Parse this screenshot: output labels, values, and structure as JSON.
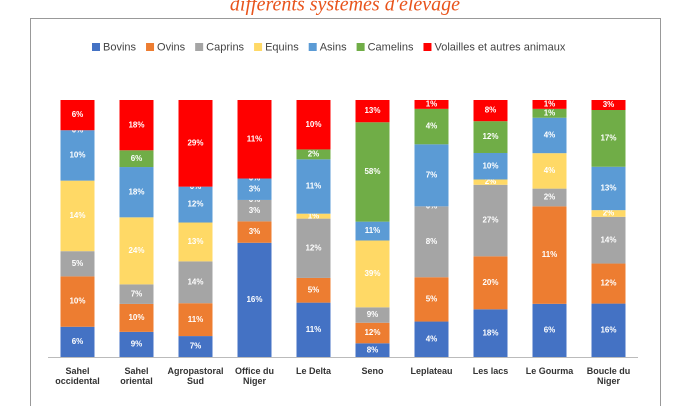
{
  "chart_data": {
    "type": "stacked100",
    "title": "différents systèmes d'élevage",
    "categories": [
      "Sahel occidental",
      "Sahel oriental",
      "Agropastoral Sud",
      "Office du Niger",
      "Le Delta",
      "Seno",
      "Leplateau",
      "Les lacs",
      "Le Gourma",
      "Boucle du Niger"
    ],
    "legend": "top",
    "series": [
      {
        "name": "Bovins",
        "color": "#4472c4",
        "values": [
          6,
          9,
          7,
          16,
          11,
          8,
          4,
          18,
          6,
          16
        ],
        "value_labels": [
          "6%",
          "9%",
          "7%",
          "16%",
          "11%",
          "8%",
          "4%",
          "18%",
          "6%",
          "16%"
        ]
      },
      {
        "name": "Ovins",
        "color": "#ed7d31",
        "values": [
          10,
          10,
          11,
          3,
          5,
          12,
          5,
          20,
          11,
          12
        ],
        "value_labels": [
          "10%",
          "10%",
          "11%",
          "3%",
          "5%",
          "12%",
          "5%",
          "20%",
          "11%",
          "12%"
        ]
      },
      {
        "name": "Caprins",
        "color": "#a5a5a5",
        "values": [
          5,
          7,
          14,
          3,
          12,
          9,
          8,
          27,
          2,
          14
        ],
        "value_labels": [
          "5%",
          "7%",
          "14%",
          "3%",
          "12%",
          "9%",
          "8%",
          "27%",
          "2%",
          "14%"
        ]
      },
      {
        "name": "Equins",
        "color": "#ffd966",
        "values": [
          14,
          24,
          13,
          0,
          1,
          39,
          0,
          2,
          4,
          2
        ],
        "value_labels": [
          "14%",
          "24%",
          "13%",
          "0%",
          "1%",
          "39%",
          "0%",
          "2%",
          "4%",
          "2%"
        ]
      },
      {
        "name": "Asins",
        "color": "#5b9bd5",
        "values": [
          10,
          18,
          12,
          3,
          11,
          11,
          7,
          10,
          4,
          13
        ],
        "value_labels": [
          "10%",
          "18%",
          "12%",
          "3%",
          "11%",
          "11%",
          "7%",
          "10%",
          "4%",
          "13%"
        ]
      },
      {
        "name": "Camelins",
        "color": "#70ad47",
        "values": [
          0,
          6,
          0,
          0,
          2,
          58,
          4,
          12,
          1,
          17
        ],
        "value_labels": [
          "0%",
          "6%",
          "0%",
          "0%",
          "2%",
          "58%",
          "4%",
          "12%",
          "1%",
          "17%"
        ]
      },
      {
        "name": "Volailles et autres animaux",
        "color": "#ff0000",
        "values": [
          6,
          18,
          29,
          11,
          10,
          13,
          1,
          8,
          1,
          3
        ],
        "value_labels": [
          "6%",
          "18%",
          "29%",
          "11%",
          "10%",
          "13%",
          "1%",
          "8%",
          "1%",
          "3%"
        ]
      }
    ]
  }
}
